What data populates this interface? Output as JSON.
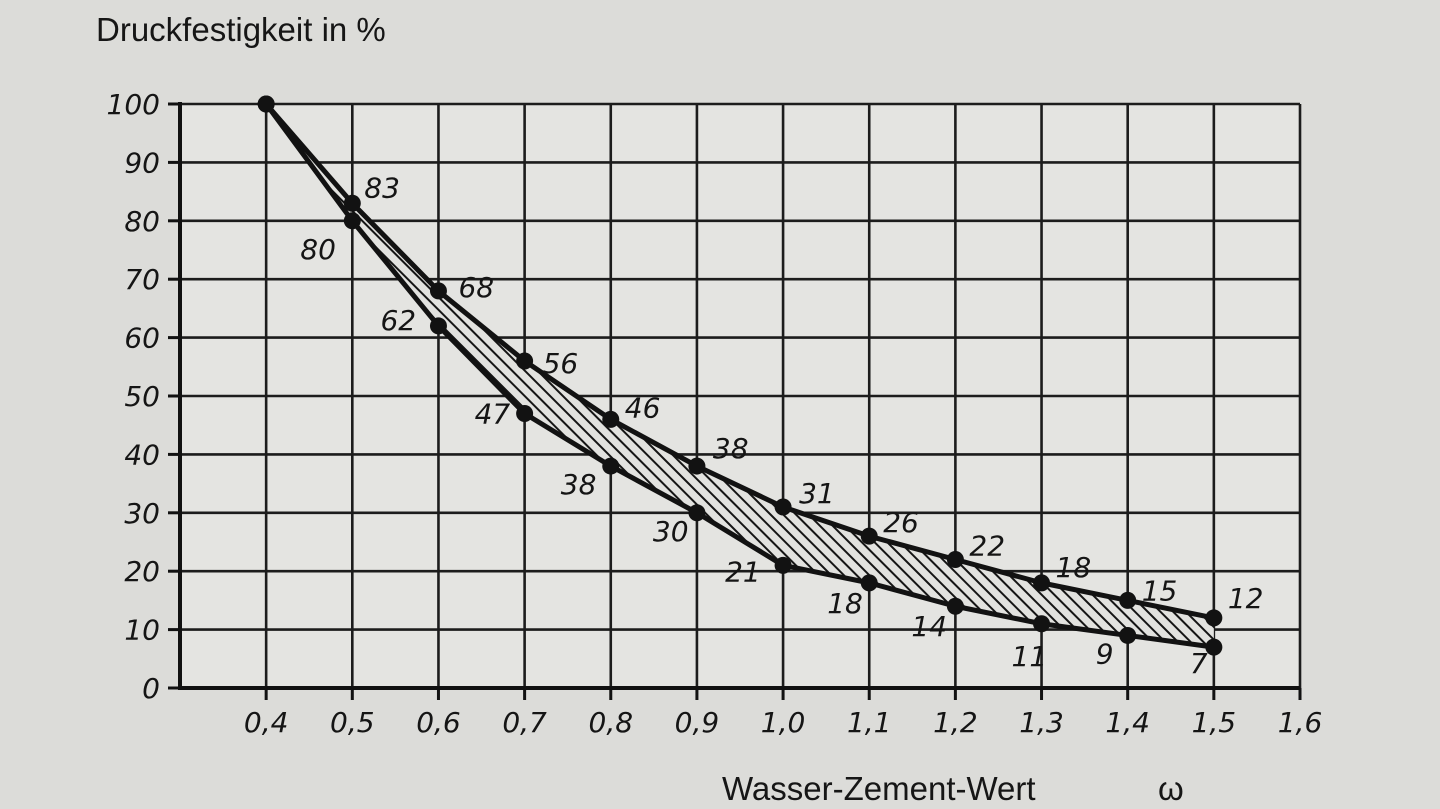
{
  "chart_data": {
    "type": "line",
    "ylabel": "Druckfestigkeit in %",
    "xlabel": "Wasser-Zement-Wert",
    "xlabel_symbol": "ω",
    "xlim": [
      0.3,
      1.6
    ],
    "ylim": [
      0,
      100
    ],
    "grid": true,
    "band_hatched": true,
    "x_ticks": [
      "0,4",
      "0,5",
      "0,6",
      "0,7",
      "0,8",
      "0,9",
      "1,0",
      "1,1",
      "1,2",
      "1,3",
      "1,4",
      "1,5",
      "1,6"
    ],
    "y_ticks": [
      "0",
      "10",
      "20",
      "30",
      "40",
      "50",
      "60",
      "70",
      "80",
      "90",
      "100"
    ],
    "x": [
      0.4,
      0.5,
      0.6,
      0.7,
      0.8,
      0.9,
      1.0,
      1.1,
      1.2,
      1.3,
      1.4,
      1.5
    ],
    "series": [
      {
        "values": [
          100,
          83,
          68,
          56,
          46,
          38,
          31,
          26,
          22,
          18,
          15,
          12
        ],
        "labels": [
          "",
          "83",
          "68",
          "56",
          "46",
          "38",
          "31",
          "26",
          "22",
          "18",
          "15",
          "12"
        ]
      },
      {
        "values": [
          100,
          80,
          62,
          47,
          38,
          30,
          21,
          18,
          14,
          11,
          9,
          7
        ],
        "labels": [
          "",
          "80",
          "62",
          "47",
          "38",
          "30",
          "21",
          "18",
          "14",
          "11",
          "9",
          "7"
        ]
      }
    ]
  }
}
